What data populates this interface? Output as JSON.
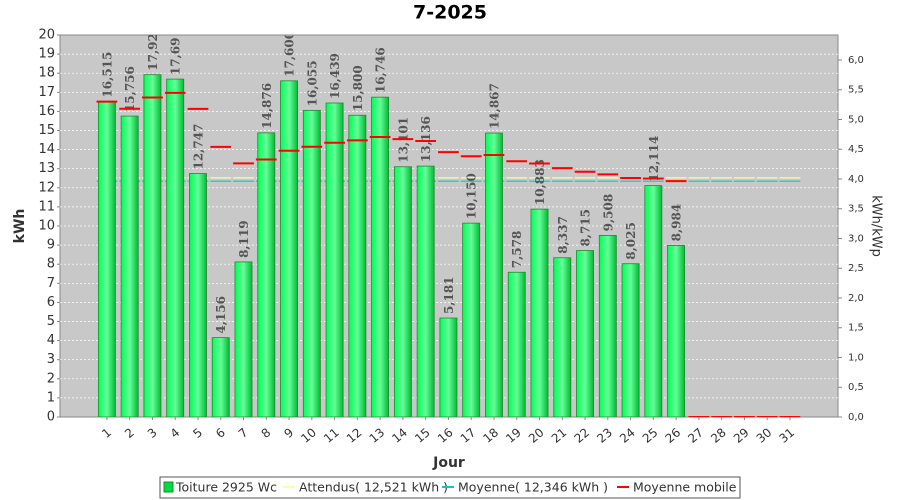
{
  "chart_data": {
    "type": "bar",
    "title": "7-2025",
    "x_label": "Jour",
    "y_label": "kWh",
    "y2_label": "kWh/kWp",
    "categories": [
      "1",
      "2",
      "3",
      "4",
      "5",
      "6",
      "7",
      "8",
      "9",
      "10",
      "11",
      "12",
      "13",
      "14",
      "15",
      "16",
      "17",
      "18",
      "19",
      "20",
      "21",
      "22",
      "23",
      "24",
      "25",
      "26",
      "27",
      "28",
      "29",
      "30",
      "31"
    ],
    "series": [
      {
        "name": "Toiture 2925 Wc",
        "color": "#00dd44",
        "kind": "bar",
        "values": [
          16.515,
          15.756,
          17.92,
          17.69,
          12.747,
          4.156,
          8.119,
          14.876,
          17.6,
          16.055,
          16.439,
          15.8,
          16.746,
          13.101,
          13.136,
          5.181,
          10.15,
          14.867,
          7.578,
          10.883,
          8.337,
          8.715,
          9.508,
          8.025,
          12.114,
          8.984,
          null,
          null,
          null,
          null,
          null
        ],
        "value_labels": [
          "16,515",
          "15,756",
          "17,92",
          "17,69",
          "12,747",
          "4,156",
          "8,119",
          "14,876",
          "17,600",
          "16,055",
          "16,439",
          "15,800",
          "16,746",
          "13,101",
          "13,136",
          "5,181",
          "10,150",
          "14,867",
          "7,578",
          "10,883",
          "8,337",
          "8,715",
          "9,508",
          "8,025",
          "12,114",
          "8,984",
          null,
          null,
          null,
          null,
          null
        ]
      },
      {
        "name": "Attendus( 12,521 kWh )",
        "color": "#ffff99",
        "kind": "dash",
        "values": [
          12.521,
          12.521,
          12.521,
          12.521,
          12.521,
          12.521,
          12.521,
          12.521,
          12.521,
          12.521,
          12.521,
          12.521,
          12.521,
          12.521,
          12.521,
          12.521,
          12.521,
          12.521,
          12.521,
          12.521,
          12.521,
          12.521,
          12.521,
          12.521,
          12.521,
          12.521,
          12.521,
          12.521,
          12.521,
          12.521,
          12.521
        ]
      },
      {
        "name": "Moyenne( 12,346 kWh )",
        "color": "#00cccc",
        "kind": "dash",
        "values": [
          12.346,
          12.346,
          12.346,
          12.346,
          12.346,
          12.346,
          12.346,
          12.346,
          12.346,
          12.346,
          12.346,
          12.346,
          12.346,
          12.346,
          12.346,
          12.346,
          12.346,
          12.346,
          12.346,
          12.346,
          12.346,
          12.346,
          12.346,
          12.346,
          12.346,
          12.346,
          12.346,
          12.346,
          12.346,
          12.346,
          12.346
        ]
      },
      {
        "name": "Moyenne mobile",
        "color": "#ff0000",
        "kind": "dash",
        "values": [
          16.515,
          16.14,
          16.73,
          16.97,
          16.13,
          14.14,
          13.28,
          13.48,
          13.94,
          14.15,
          14.36,
          14.48,
          14.66,
          14.55,
          14.45,
          13.87,
          13.65,
          13.72,
          13.39,
          13.27,
          13.03,
          12.84,
          12.7,
          12.51,
          12.49,
          12.35,
          0,
          0,
          0,
          0,
          0
        ]
      }
    ],
    "ylim": [
      0,
      20
    ],
    "yticks": [
      0,
      1,
      2,
      3,
      4,
      5,
      6,
      7,
      8,
      9,
      10,
      11,
      12,
      13,
      14,
      15,
      16,
      17,
      18,
      19,
      20
    ],
    "y2lim": [
      0,
      6.42
    ],
    "y2ticks": [
      {
        "value": 0,
        "label": "0,0"
      },
      {
        "value": 0.5,
        "label": "0,5"
      },
      {
        "value": 1,
        "label": "1,0"
      },
      {
        "value": 1.5,
        "label": "1,5"
      },
      {
        "value": 2,
        "label": "2,0"
      },
      {
        "value": 2.5,
        "label": "2,5"
      },
      {
        "value": 3,
        "label": "3,0"
      },
      {
        "value": 3.5,
        "label": "3,5"
      },
      {
        "value": 4,
        "label": "4,0"
      },
      {
        "value": 4.5,
        "label": "4,5"
      },
      {
        "value": 5,
        "label": "5,0"
      },
      {
        "value": 5.5,
        "label": "5,5"
      },
      {
        "value": 6,
        "label": "6,0"
      }
    ],
    "grid": true
  }
}
